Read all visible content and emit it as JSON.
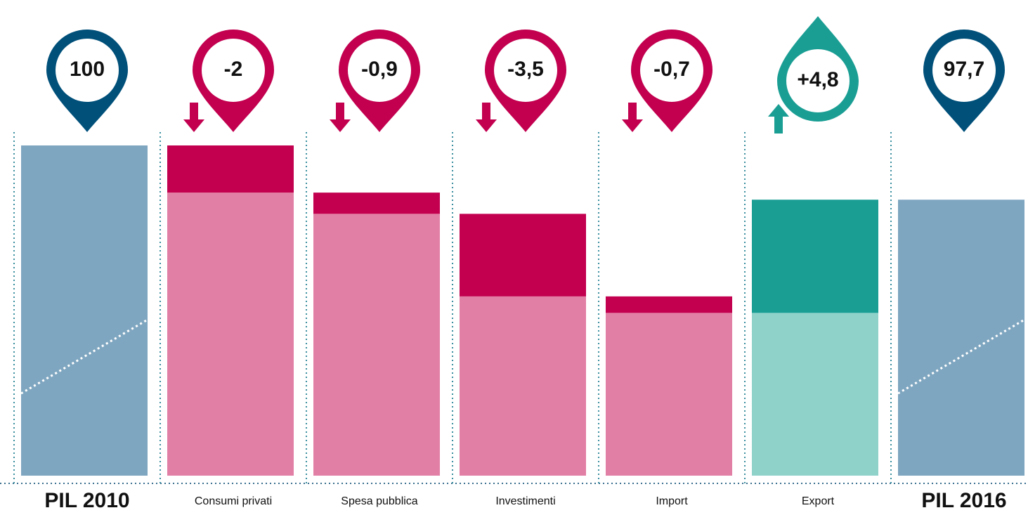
{
  "chart_data": {
    "type": "waterfall",
    "categories": [
      "PIL 2010",
      "Consumi privati",
      "Spesa pubblica",
      "Investimenti",
      "Import",
      "Export",
      "PIL 2016"
    ],
    "values": [
      100,
      -2,
      -0.9,
      -3.5,
      -0.7,
      4.8,
      97.7
    ],
    "value_labels": [
      "100",
      "-2",
      "-0,9",
      "-3,5",
      "-0,7",
      "+4,8",
      "97,7"
    ],
    "is_total": [
      true,
      false,
      false,
      false,
      false,
      false,
      true
    ],
    "ylim": [
      86,
      100
    ],
    "colors": {
      "total": "#7fa6c0",
      "total_pin": "#00507a",
      "decrease": "#c2004f",
      "decrease_base": "#e27fa5",
      "increase": "#1a9e94",
      "increase_base": "#8fd2ca"
    }
  }
}
